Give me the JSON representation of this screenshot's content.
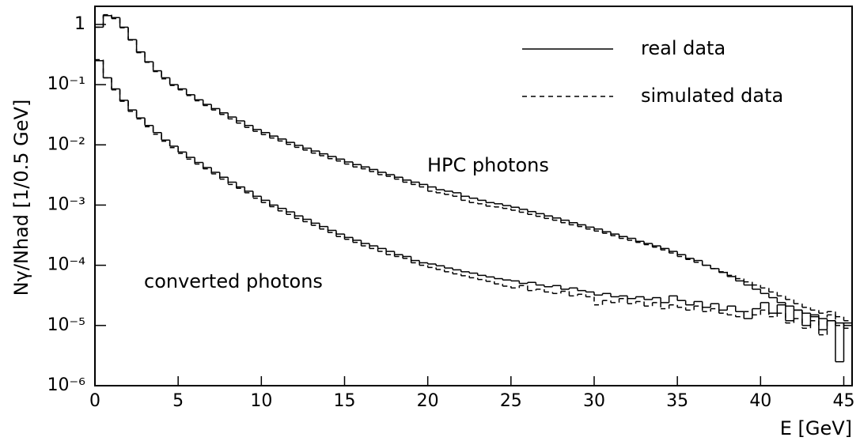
{
  "chart_data": {
    "type": "histogram",
    "y_label": "Nγ/Nhad [1/0.5 GeV]",
    "x_label": "E [GeV]",
    "annotations": [
      "HPC photons",
      "converted photons"
    ],
    "log_y": true,
    "legend": "upper right",
    "bins": [
      0,
      0.5,
      1,
      1.5,
      2,
      2.5,
      3,
      3.5,
      4,
      4.5,
      5,
      5.5,
      6,
      6.5,
      7,
      7.5,
      8,
      8.5,
      9,
      9.5,
      10,
      10.5,
      11,
      11.5,
      12,
      12.5,
      13,
      13.5,
      14,
      14.5,
      15,
      15.5,
      16,
      16.5,
      17,
      17.5,
      18,
      18.5,
      19,
      19.5,
      20,
      20.5,
      21,
      21.5,
      22,
      22.5,
      23,
      23.5,
      24,
      24.5,
      25,
      25.5,
      26,
      26.5,
      27,
      27.5,
      28,
      28.5,
      29,
      29.5,
      30,
      30.5,
      31,
      31.5,
      32,
      32.5,
      33,
      33.5,
      34,
      34.5,
      35,
      35.5,
      36,
      36.5,
      37,
      37.5,
      38,
      38.5,
      39,
      39.5,
      40,
      40.5,
      41,
      41.5,
      42,
      42.5,
      43,
      43.5,
      44,
      44.5,
      45,
      45.5
    ],
    "series": [
      {
        "name": "real data",
        "color": "#000000",
        "line_style": "solid",
        "values": [
          0.9,
          1.4,
          1.3,
          0.9,
          0.56,
          0.35,
          0.24,
          0.17,
          0.13,
          0.1,
          0.085,
          0.068,
          0.056,
          0.047,
          0.04,
          0.034,
          0.029,
          0.025,
          0.021,
          0.018,
          0.016,
          0.014,
          0.0125,
          0.011,
          0.0098,
          0.0088,
          0.0079,
          0.0071,
          0.0064,
          0.0058,
          0.0052,
          0.0047,
          0.0043,
          0.0039,
          0.0035,
          0.0032,
          0.0029,
          0.0026,
          0.0024,
          0.0022,
          0.002,
          0.0018,
          0.0017,
          0.0016,
          0.0014,
          0.0013,
          0.0012,
          0.0011,
          0.00105,
          0.00098,
          0.00092,
          0.00085,
          0.00078,
          0.00072,
          0.00066,
          0.00061,
          0.00056,
          0.00051,
          0.00047,
          0.00043,
          0.0004,
          0.00036,
          0.00033,
          0.0003,
          0.00028,
          0.00025,
          0.00023,
          0.00021,
          0.00019,
          0.00017,
          0.00015,
          0.00013,
          0.00012,
          0.0001,
          8.8e-05,
          7.6e-05,
          6.5e-05,
          5.5e-05,
          4.7e-05,
          4e-05,
          3.4e-05,
          2.9e-05,
          2.4e-05,
          2.1e-05,
          1.8e-05,
          1.6e-05,
          1.4e-05,
          1.3e-05,
          1.2e-05,
          1.1e-05,
          1e-05
        ]
      },
      {
        "name": "simulated data",
        "color": "#000000",
        "line_style": "dashed",
        "values": [
          0.9,
          1.45,
          1.25,
          0.88,
          0.55,
          0.34,
          0.235,
          0.165,
          0.125,
          0.097,
          0.082,
          0.066,
          0.054,
          0.045,
          0.038,
          0.032,
          0.027,
          0.023,
          0.0195,
          0.0168,
          0.0148,
          0.013,
          0.0116,
          0.0102,
          0.0091,
          0.0082,
          0.0073,
          0.0066,
          0.0059,
          0.0054,
          0.0048,
          0.0043,
          0.004,
          0.0036,
          0.0032,
          0.003,
          0.0027,
          0.0024,
          0.0022,
          0.002,
          0.0017,
          0.0016,
          0.0015,
          0.0014,
          0.0012,
          0.0011,
          0.00105,
          0.00096,
          0.00093,
          0.00088,
          0.00082,
          0.00076,
          0.0007,
          0.00065,
          0.0006,
          0.00056,
          0.00051,
          0.00047,
          0.00044,
          0.0004,
          0.00037,
          0.00034,
          0.00031,
          0.00028,
          0.00026,
          0.00024,
          0.00022,
          0.0002,
          0.00018,
          0.00016,
          0.00014,
          0.000125,
          0.000112,
          0.0001,
          8.8e-05,
          7.8e-05,
          6.8e-05,
          6e-05,
          5.3e-05,
          4.7e-05,
          4.2e-05,
          3.6e-05,
          3.1e-05,
          2.7e-05,
          2.3e-05,
          2e-05,
          1.8e-05,
          1.6e-05,
          1.7e-05,
          1.4e-05,
          1.2e-05
        ]
      },
      {
        "color": "#000000",
        "line_style": "solid",
        "values": [
          0.25,
          0.13,
          0.085,
          0.055,
          0.038,
          0.028,
          0.021,
          0.016,
          0.012,
          0.0095,
          0.0076,
          0.0062,
          0.0051,
          0.0042,
          0.0035,
          0.0029,
          0.0024,
          0.002,
          0.0017,
          0.0014,
          0.0012,
          0.001,
          0.00088,
          0.00077,
          0.00066,
          0.00058,
          0.0005,
          0.00044,
          0.00038,
          0.00033,
          0.00029,
          0.00026,
          0.00023,
          0.00021,
          0.00019,
          0.00017,
          0.00015,
          0.00014,
          0.00012,
          0.00011,
          0.000105,
          9.8e-05,
          9e-05,
          8.4e-05,
          7.8e-05,
          7.4e-05,
          6.8e-05,
          6.4e-05,
          6e-05,
          5.7e-05,
          5.5e-05,
          5e-05,
          5.2e-05,
          4.7e-05,
          4.4e-05,
          4.6e-05,
          4e-05,
          4.2e-05,
          3.8e-05,
          3.6e-05,
          3.2e-05,
          3.4e-05,
          3e-05,
          3.1e-05,
          2.8e-05,
          3e-05,
          2.7e-05,
          2.9e-05,
          2.4e-05,
          3.1e-05,
          2.6e-05,
          2.2e-05,
          2.5e-05,
          2e-05,
          2.3e-05,
          1.8e-05,
          2.1e-05,
          1.7e-05,
          1.3e-05,
          1.9e-05,
          2.4e-05,
          1.6e-05,
          2.2e-05,
          1.2e-05,
          1.8e-05,
          1e-05,
          1.5e-05,
          8.5e-06,
          1.2e-05,
          2.5e-06,
          1.1e-05
        ]
      },
      {
        "color": "#000000",
        "line_style": "dashed",
        "values": [
          0.26,
          0.13,
          0.082,
          0.053,
          0.036,
          0.027,
          0.02,
          0.015,
          0.0115,
          0.009,
          0.0072,
          0.0058,
          0.0048,
          0.004,
          0.0033,
          0.0027,
          0.0022,
          0.0019,
          0.0016,
          0.0013,
          0.0011,
          0.00094,
          0.0008,
          0.0007,
          0.0006,
          0.00053,
          0.00046,
          0.0004,
          0.00035,
          0.0003,
          0.00027,
          0.00024,
          0.00021,
          0.00019,
          0.00017,
          0.00015,
          0.00014,
          0.00013,
          0.00011,
          0.0001,
          9.2e-05,
          8.5e-05,
          7.8e-05,
          7.2e-05,
          6.7e-05,
          6.2e-05,
          5.8e-05,
          5.4e-05,
          4.9e-05,
          4.5e-05,
          4.2e-05,
          4.6e-05,
          3.8e-05,
          4e-05,
          3.6e-05,
          3.4e-05,
          3.7e-05,
          3.1e-05,
          3.3e-05,
          3e-05,
          2.2e-05,
          2.6e-05,
          2.4e-05,
          2.8e-05,
          2.3e-05,
          2.5e-05,
          2.1e-05,
          2.4e-05,
          1.9e-05,
          2.2e-05,
          2e-05,
          1.8e-05,
          2.1e-05,
          1.7e-05,
          1.9e-05,
          1.6e-05,
          1.5e-05,
          1.4e-05,
          1.7e-05,
          1.5e-05,
          1.8e-05,
          1.4e-05,
          1.6e-05,
          1.1e-05,
          1.3e-05,
          9e-06,
          1.2e-05,
          7e-06,
          1.5e-05,
          1e-05,
          9e-06
        ]
      }
    ],
    "xlim": [
      0,
      45.5
    ],
    "xticks": [
      0,
      5,
      10,
      15,
      20,
      25,
      30,
      35,
      40,
      45
    ],
    "ylim": [
      1e-06,
      2
    ],
    "yticks": [
      {
        "value": 1e-06,
        "label": "10⁻⁶"
      },
      {
        "value": 1e-05,
        "label": "10⁻⁵"
      },
      {
        "value": 0.0001,
        "label": "10⁻⁴"
      },
      {
        "value": 0.001,
        "label": "10⁻³"
      },
      {
        "value": 0.01,
        "label": "10⁻²"
      },
      {
        "value": 0.1,
        "label": "10⁻¹"
      },
      1
    ]
  }
}
